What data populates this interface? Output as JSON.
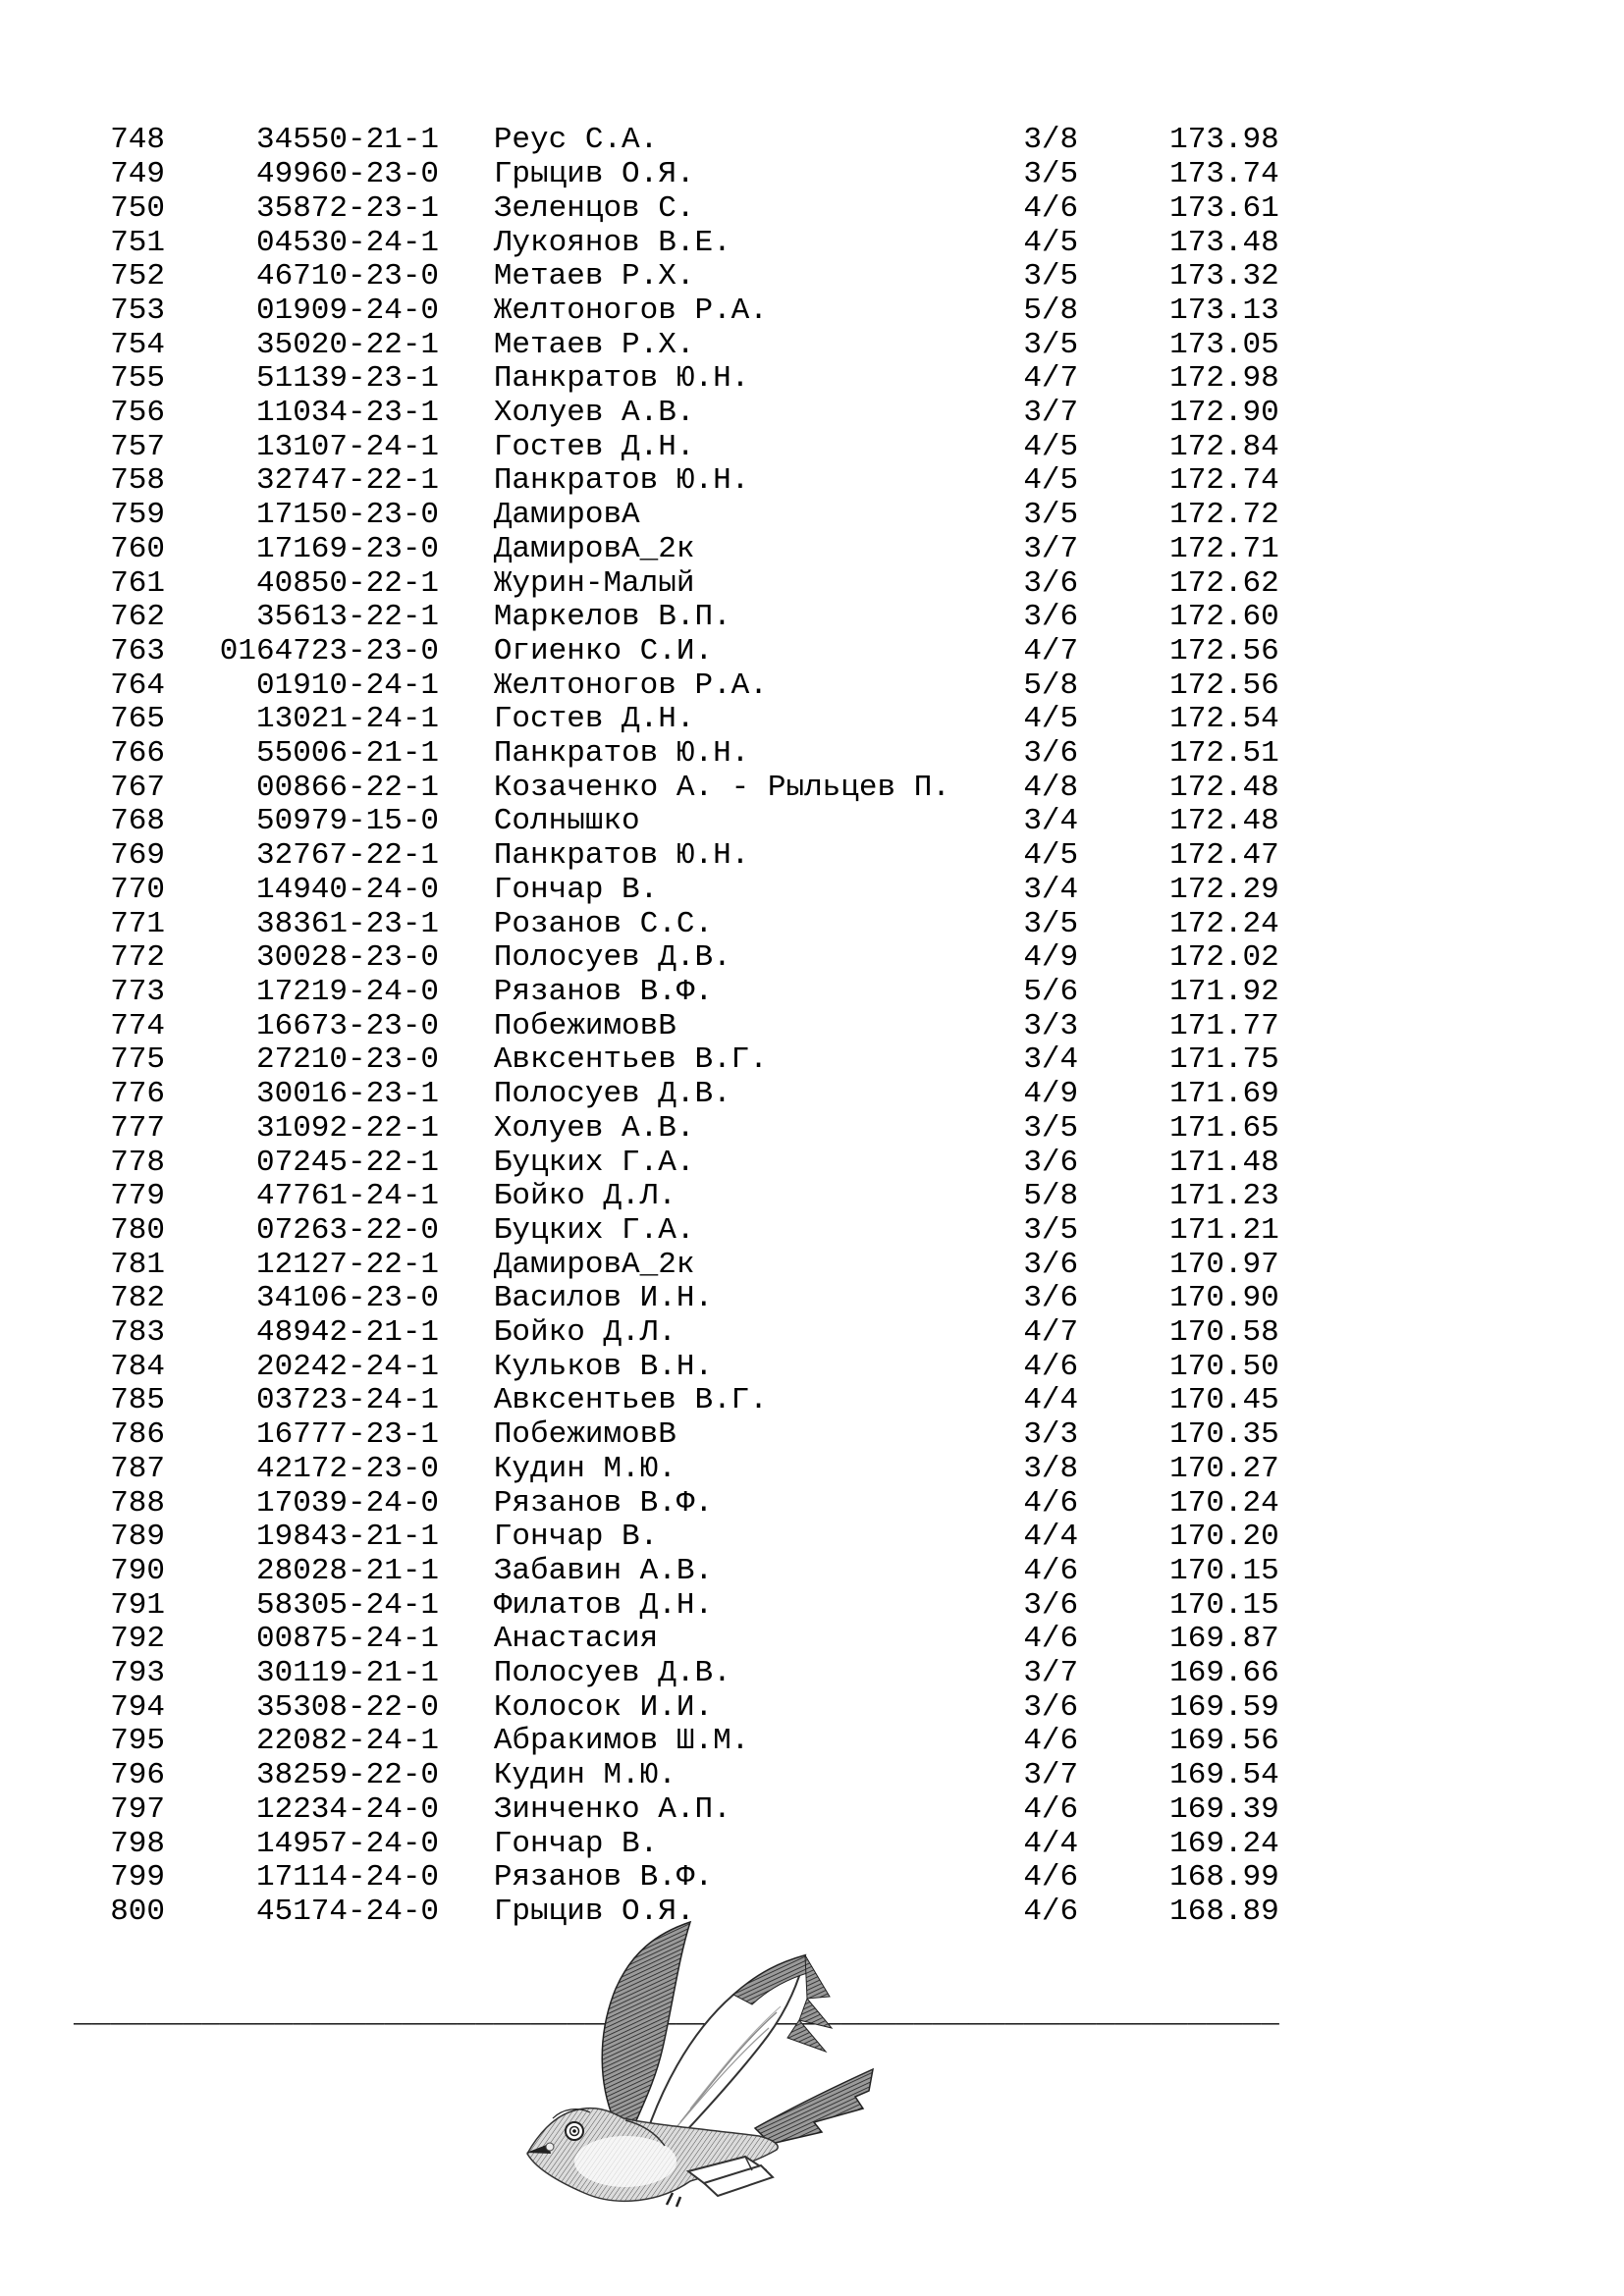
{
  "page": {
    "background": "#ffffff",
    "text_color": "#000000"
  },
  "table": {
    "rows": [
      [
        "748",
        "34550-21-1",
        "Реус С.А.",
        "3/8",
        "173.98"
      ],
      [
        "749",
        "49960-23-0",
        "Грыцив О.Я.",
        "3/5",
        "173.74"
      ],
      [
        "750",
        "35872-23-1",
        "Зеленцов С.",
        "4/6",
        "173.61"
      ],
      [
        "751",
        "04530-24-1",
        "Лукоянов В.Е.",
        "4/5",
        "173.48"
      ],
      [
        "752",
        "46710-23-0",
        "Метаев Р.Х.",
        "3/5",
        "173.32"
      ],
      [
        "753",
        "01909-24-0",
        "Желтоногов Р.А.",
        "5/8",
        "173.13"
      ],
      [
        "754",
        "35020-22-1",
        "Метаев Р.Х.",
        "3/5",
        "173.05"
      ],
      [
        "755",
        "51139-23-1",
        "Панкратов Ю.Н.",
        "4/7",
        "172.98"
      ],
      [
        "756",
        "11034-23-1",
        "Холуев А.В.",
        "3/7",
        "172.90"
      ],
      [
        "757",
        "13107-24-1",
        "Гостев Д.Н.",
        "4/5",
        "172.84"
      ],
      [
        "758",
        "32747-22-1",
        "Панкратов Ю.Н.",
        "4/5",
        "172.74"
      ],
      [
        "759",
        "17150-23-0",
        "ДамировА",
        "3/5",
        "172.72"
      ],
      [
        "760",
        "17169-23-0",
        "ДамировА_2к",
        "3/7",
        "172.71"
      ],
      [
        "761",
        "40850-22-1",
        "Журин-Малый",
        "3/6",
        "172.62"
      ],
      [
        "762",
        "35613-22-1",
        "Маркелов В.П.",
        "3/6",
        "172.60"
      ],
      [
        "763",
        "0164723-23-0",
        "Огиенко С.И.",
        "4/7",
        "172.56"
      ],
      [
        "764",
        "01910-24-1",
        "Желтоногов Р.А.",
        "5/8",
        "172.56"
      ],
      [
        "765",
        "13021-24-1",
        "Гостев Д.Н.",
        "4/5",
        "172.54"
      ],
      [
        "766",
        "55006-21-1",
        "Панкратов Ю.Н.",
        "3/6",
        "172.51"
      ],
      [
        "767",
        "00866-22-1",
        "Козаченко А. - Рыльцев П.",
        "4/8",
        "172.48"
      ],
      [
        "768",
        "50979-15-0",
        "Солнышко",
        "3/4",
        "172.48"
      ],
      [
        "769",
        "32767-22-1",
        "Панкратов Ю.Н.",
        "4/5",
        "172.47"
      ],
      [
        "770",
        "14940-24-0",
        "Гончар В.",
        "3/4",
        "172.29"
      ],
      [
        "771",
        "38361-23-1",
        "Розанов С.С.",
        "3/5",
        "172.24"
      ],
      [
        "772",
        "30028-23-0",
        "Полосуев Д.В.",
        "4/9",
        "172.02"
      ],
      [
        "773",
        "17219-24-0",
        "Рязанов В.Ф.",
        "5/6",
        "171.92"
      ],
      [
        "774",
        "16673-23-0",
        "ПобежимовВ",
        "3/3",
        "171.77"
      ],
      [
        "775",
        "27210-23-0",
        "Авксентьев В.Г.",
        "3/4",
        "171.75"
      ],
      [
        "776",
        "30016-23-1",
        "Полосуев Д.В.",
        "4/9",
        "171.69"
      ],
      [
        "777",
        "31092-22-1",
        "Холуев А.В.",
        "3/5",
        "171.65"
      ],
      [
        "778",
        "07245-22-1",
        "Буцких Г.А.",
        "3/6",
        "171.48"
      ],
      [
        "779",
        "47761-24-1",
        "Бойко Д.Л.",
        "5/8",
        "171.23"
      ],
      [
        "780",
        "07263-22-0",
        "Буцких Г.А.",
        "3/5",
        "171.21"
      ],
      [
        "781",
        "12127-22-1",
        "ДамировА_2к",
        "3/6",
        "170.97"
      ],
      [
        "782",
        "34106-23-0",
        "Василов И.Н.",
        "3/6",
        "170.90"
      ],
      [
        "783",
        "48942-21-1",
        "Бойко Д.Л.",
        "4/7",
        "170.58"
      ],
      [
        "784",
        "20242-24-1",
        "Кульков В.Н.",
        "4/6",
        "170.50"
      ],
      [
        "785",
        "03723-24-1",
        "Авксентьев В.Г.",
        "4/4",
        "170.45"
      ],
      [
        "786",
        "16777-23-1",
        "ПобежимовВ",
        "3/3",
        "170.35"
      ],
      [
        "787",
        "42172-23-0",
        "Кудин М.Ю.",
        "3/8",
        "170.27"
      ],
      [
        "788",
        "17039-24-0",
        "Рязанов В.Ф.",
        "4/6",
        "170.24"
      ],
      [
        "789",
        "19843-21-1",
        "Гончар В.",
        "4/4",
        "170.20"
      ],
      [
        "790",
        "28028-21-1",
        "Забавин А.В.",
        "4/6",
        "170.15"
      ],
      [
        "791",
        "58305-24-1",
        "Филатов Д.Н.",
        "3/6",
        "170.15"
      ],
      [
        "792",
        "00875-24-1",
        "Анастасия",
        "4/6",
        "169.87"
      ],
      [
        "793",
        "30119-21-1",
        "Полосуев Д.В.",
        "3/7",
        "169.66"
      ],
      [
        "794",
        "35308-22-0",
        "Колосок И.И.",
        "3/6",
        "169.59"
      ],
      [
        "795",
        "22082-24-1",
        "Абракимов Ш.М.",
        "4/6",
        "169.56"
      ],
      [
        "796",
        "38259-22-0",
        "Кудин М.Ю.",
        "3/7",
        "169.54"
      ],
      [
        "797",
        "12234-24-0",
        "Зинченко А.П.",
        "4/6",
        "169.39"
      ],
      [
        "798",
        "14957-24-0",
        "Гончар В.",
        "4/4",
        "169.24"
      ],
      [
        "799",
        "17114-24-0",
        "Рязанов В.Ф.",
        "4/6",
        "168.99"
      ],
      [
        "800",
        "45174-24-0",
        "Грыцив О.Я.",
        "4/6",
        "168.89"
      ]
    ]
  },
  "separator": "__________________________________________________________________",
  "icons": {
    "pigeon": "flying-pigeon-with-message"
  }
}
